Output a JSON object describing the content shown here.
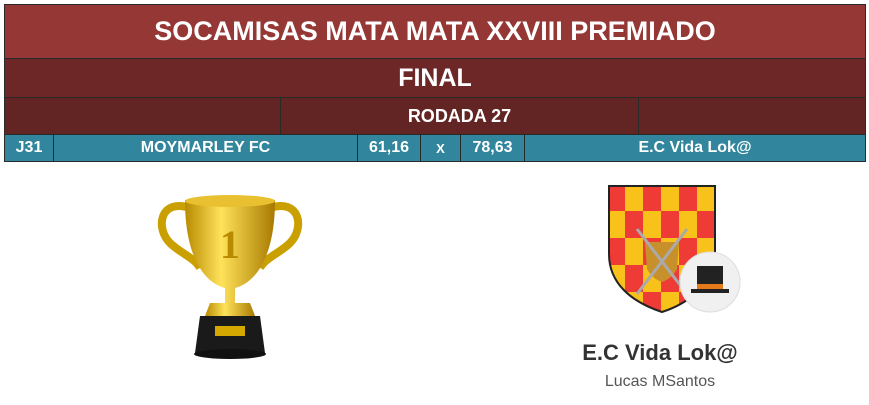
{
  "title": "SOCAMISAS MATA MATA XXVIII PREMIADO",
  "stage": "FINAL",
  "round": "RODADA 27",
  "match": {
    "id": "J31",
    "home": "MOYMARLEY FC",
    "home_score": "61,16",
    "separator": "X",
    "away_score": "78,63",
    "away": "E.C Vida Lok@"
  },
  "winner": {
    "team": "E.C Vida Lok@",
    "owner": "Lucas MSantos"
  },
  "colors": {
    "title_bg": "#953735",
    "stage_bg": "#6e2727",
    "round_bg": "#632523",
    "match_bg": "#31859c"
  }
}
